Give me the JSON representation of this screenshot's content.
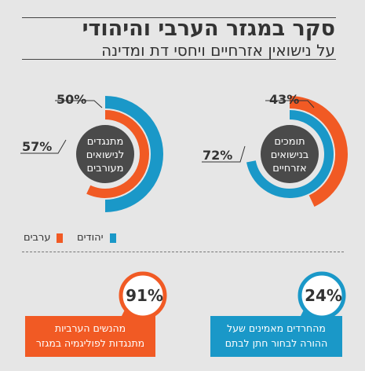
{
  "header": {
    "title": "סקר במגזר הערבי והיהודי",
    "subtitle": "על נישואין אזרחיים ויחסי דת ומדינה"
  },
  "colors": {
    "jews": "#1a98c8",
    "arabs": "#f15a24",
    "center": "#4a4a4a",
    "background": "#e6e6e6"
  },
  "chart_data": {
    "type": "donut",
    "charts": [
      {
        "center_label": "תומכים בנישואים אזרחיים",
        "series": [
          {
            "name": "יהודים",
            "value": 72,
            "color": "#1a98c8"
          },
          {
            "name": "ערבים",
            "value": 43,
            "color": "#f15a24"
          }
        ]
      },
      {
        "center_label": "מתנגדים לנישואים מעורבים",
        "series": [
          {
            "name": "יהודים",
            "value": 50,
            "color": "#1a98c8"
          },
          {
            "name": "ערבים",
            "value": 57,
            "color": "#f15a24"
          }
        ]
      }
    ],
    "legend": [
      "יהודים",
      "ערבים"
    ]
  },
  "right_chart": {
    "line1": "תומכים",
    "line2": "בנישואים",
    "line3": "אזרחיים",
    "pct_outer": "43%",
    "pct_inner": "72%"
  },
  "left_chart": {
    "line1": "מתנגדים",
    "line2": "לנישואים",
    "line3": "מעורבים",
    "pct_outer": "50%",
    "pct_inner": "57%"
  },
  "legend": {
    "jews": "יהודים",
    "arabs": "ערבים"
  },
  "stats": [
    {
      "pct": "24%",
      "line1": "מהחרדים מאמינים שעל",
      "line2": "ההורה לבחור חתן לבתם",
      "color": "#1a98c8"
    },
    {
      "pct": "91%",
      "line1": "מהנשים הערביות",
      "line2": "מתנגדות לפוליגמיה במגזר",
      "color": "#f15a24"
    }
  ]
}
